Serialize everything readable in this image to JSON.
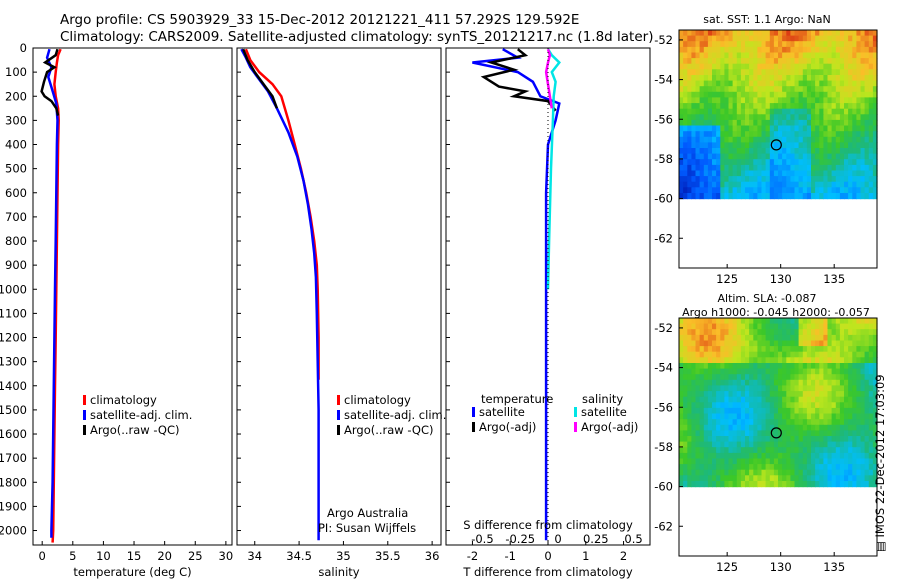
{
  "header": {
    "line1": "Argo profile: CS 5903929_33 15-Dec-2012 20121221_411 57.292S 129.592E",
    "line2": "Climatology: CARS2009. Satellite-adjusted climatology: synTS_20121217.nc (1.8d later)"
  },
  "colors": {
    "climatology": "#ff0000",
    "satellite": "#0000ff",
    "argo": "#000000",
    "sal_satellite": "#00e5e5",
    "sal_argo": "#ff00ff"
  },
  "chart_data": [
    {
      "id": "temperature",
      "type": "line",
      "xlabel": "temperature (deg C)",
      "ylabel": "",
      "xlim": [
        -1.5,
        31
      ],
      "ylim": [
        2060,
        0
      ],
      "xticks": [
        0,
        5,
        10,
        15,
        20,
        25,
        30
      ],
      "yticks": [
        0,
        100,
        200,
        300,
        400,
        500,
        600,
        700,
        800,
        900,
        1000,
        1100,
        1200,
        1300,
        1400,
        1500,
        1600,
        1700,
        1800,
        1900,
        2000
      ],
      "legend": [
        "climatology",
        "satellite-adj. clim.",
        "Argo(..raw -QC)"
      ],
      "series": [
        {
          "name": "climatology",
          "color": "#ff0000",
          "points": [
            [
              3.0,
              5
            ],
            [
              2.6,
              30
            ],
            [
              2.4,
              60
            ],
            [
              2.2,
              100
            ],
            [
              2.0,
              150
            ],
            [
              2.2,
              200
            ],
            [
              2.6,
              250
            ],
            [
              2.7,
              300
            ],
            [
              2.6,
              400
            ],
            [
              2.5,
              600
            ],
            [
              2.4,
              800
            ],
            [
              2.3,
              1000
            ],
            [
              2.2,
              1200
            ],
            [
              2.1,
              1400
            ],
            [
              2.0,
              1600
            ],
            [
              1.9,
              1800
            ],
            [
              1.8,
              2000
            ],
            [
              1.7,
              2050
            ]
          ]
        },
        {
          "name": "satellite-adj. clim.",
          "color": "#0000ff",
          "points": [
            [
              1.2,
              5
            ],
            [
              0.8,
              40
            ],
            [
              1.5,
              80
            ],
            [
              1.0,
              120
            ],
            [
              1.6,
              170
            ],
            [
              2.3,
              230
            ],
            [
              2.5,
              300
            ],
            [
              2.4,
              400
            ],
            [
              2.3,
              600
            ],
            [
              2.2,
              800
            ],
            [
              2.1,
              1000
            ],
            [
              2.0,
              1200
            ],
            [
              1.9,
              1400
            ],
            [
              1.8,
              1600
            ],
            [
              1.7,
              1800
            ],
            [
              1.5,
              2000
            ],
            [
              1.5,
              2030
            ]
          ]
        },
        {
          "name": "Argo(..raw -QC)",
          "color": "#000000",
          "points": [
            [
              2.5,
              5
            ],
            [
              2.2,
              30
            ],
            [
              0.5,
              60
            ],
            [
              2.0,
              80
            ],
            [
              0.8,
              100
            ],
            [
              0.3,
              140
            ],
            [
              -0.1,
              180
            ],
            [
              0.4,
              200
            ],
            [
              1.5,
              220
            ],
            [
              2.3,
              250
            ],
            [
              2.6,
              280
            ]
          ]
        }
      ]
    },
    {
      "id": "salinity",
      "type": "line",
      "xlabel": "salinity",
      "ylabel": "",
      "xlim": [
        33.8,
        36.1
      ],
      "ylim": [
        2060,
        0
      ],
      "xticks": [
        34,
        34.5,
        35,
        35.5,
        36
      ],
      "legend": [
        "climatology",
        "satellite-adj. clim.",
        "Argo(..raw -QC)"
      ],
      "annotation": [
        "Argo Australia",
        "PI: Susan Wijffels"
      ],
      "series": [
        {
          "name": "climatology",
          "color": "#ff0000",
          "points": [
            [
              33.9,
              5
            ],
            [
              33.95,
              50
            ],
            [
              34.05,
              100
            ],
            [
              34.2,
              150
            ],
            [
              34.3,
              200
            ],
            [
              34.38,
              300
            ],
            [
              34.45,
              400
            ],
            [
              34.52,
              500
            ],
            [
              34.58,
              600
            ],
            [
              34.63,
              700
            ],
            [
              34.67,
              800
            ],
            [
              34.7,
              900
            ],
            [
              34.71,
              1000
            ],
            [
              34.72,
              1200
            ],
            [
              34.72,
              1375
            ]
          ]
        },
        {
          "name": "satellite-adj. clim.",
          "color": "#0000ff",
          "points": [
            [
              33.85,
              5
            ],
            [
              33.9,
              40
            ],
            [
              33.95,
              80
            ],
            [
              34.05,
              130
            ],
            [
              34.15,
              180
            ],
            [
              34.25,
              250
            ],
            [
              34.38,
              350
            ],
            [
              34.48,
              450
            ],
            [
              34.55,
              550
            ],
            [
              34.6,
              650
            ],
            [
              34.64,
              750
            ],
            [
              34.67,
              850
            ],
            [
              34.69,
              950
            ],
            [
              34.7,
              1100
            ],
            [
              34.71,
              1300
            ],
            [
              34.72,
              1500
            ],
            [
              34.72,
              1800
            ],
            [
              34.72,
              2000
            ],
            [
              34.72,
              2040
            ]
          ]
        },
        {
          "name": "Argo(..raw -QC)",
          "color": "#000000",
          "points": [
            [
              33.87,
              5
            ],
            [
              33.92,
              50
            ],
            [
              34.0,
              100
            ],
            [
              34.1,
              150
            ],
            [
              34.2,
              200
            ],
            [
              34.25,
              250
            ]
          ]
        }
      ]
    },
    {
      "id": "difference",
      "type": "line",
      "xlabel": "T difference from climatology",
      "x2label": "S difference from climatology",
      "xlim": [
        -2.7,
        2.7
      ],
      "ylim": [
        2060,
        0
      ],
      "xticks": [
        -2,
        -1,
        0,
        1,
        2
      ],
      "x2ticks": [
        "-0.5",
        "-0.25",
        "0",
        "0.25",
        "0.5"
      ],
      "legend_title_temperature": "temperature",
      "legend_title_salinity": "salinity",
      "legend": [
        "satellite",
        "Argo(-adj)",
        "satellite",
        "Argo(-adj)"
      ],
      "series": [
        {
          "name": "T satellite",
          "color": "#0000ff",
          "points": [
            [
              -1.2,
              5
            ],
            [
              -0.8,
              40
            ],
            [
              -2.0,
              60
            ],
            [
              -0.8,
              100
            ],
            [
              -0.4,
              140
            ],
            [
              -0.2,
              200
            ],
            [
              0.3,
              230
            ],
            [
              0.2,
              300
            ],
            [
              0.0,
              400
            ],
            [
              -0.05,
              600
            ],
            [
              -0.05,
              1000
            ],
            [
              -0.05,
              1500
            ],
            [
              -0.05,
              2000
            ],
            [
              -0.05,
              2040
            ]
          ]
        },
        {
          "name": "T Argo(-adj)",
          "color": "#000000",
          "points": [
            [
              -0.8,
              5
            ],
            [
              -0.6,
              30
            ],
            [
              -1.5,
              60
            ],
            [
              -0.9,
              90
            ],
            [
              -1.7,
              120
            ],
            [
              -1.3,
              160
            ],
            [
              -0.6,
              180
            ],
            [
              -0.9,
              200
            ],
            [
              0.0,
              220
            ],
            [
              0.2,
              260
            ]
          ]
        },
        {
          "name": "S satellite",
          "color": "#00e5e5",
          "points": [
            [
              0.0,
              5
            ],
            [
              0.1,
              30
            ],
            [
              0.3,
              60
            ],
            [
              0.1,
              100
            ],
            [
              0.2,
              140
            ],
            [
              0.15,
              200
            ],
            [
              0.13,
              300
            ],
            [
              0.08,
              500
            ],
            [
              0.03,
              800
            ],
            [
              0.0,
              1000
            ]
          ]
        },
        {
          "name": "S Argo(-adj)",
          "color": "#ff00ff",
          "points": [
            [
              0.0,
              5
            ],
            [
              0.05,
              30
            ],
            [
              0.0,
              60
            ],
            [
              -0.05,
              100
            ],
            [
              0.0,
              150
            ],
            [
              0.05,
              200
            ],
            [
              0.1,
              250
            ]
          ]
        }
      ]
    },
    {
      "id": "sst_map",
      "type": "heatmap",
      "title": "sat. SST: 1.1  Argo: NaN",
      "xticks": [
        125,
        130,
        135
      ],
      "yticks": [
        -52,
        -54,
        -56,
        -58,
        -60,
        -62
      ],
      "xlim": [
        120.5,
        139
      ],
      "ylim": [
        -63.5,
        -51.5
      ],
      "data_extent_lat": [
        -60,
        -51.5
      ],
      "marker": {
        "lon": 129.592,
        "lat": -57.292
      }
    },
    {
      "id": "sla_map",
      "type": "heatmap",
      "title_line1": "Altim. SLA: -0.087",
      "title_line2": "Argo h1000: -0.045 h2000: -0.057",
      "xticks": [
        125,
        130,
        135
      ],
      "yticks": [
        -52,
        -54,
        -56,
        -58,
        -60,
        -62
      ],
      "xlim": [
        120.5,
        139
      ],
      "ylim": [
        -63.5,
        -51.5
      ],
      "data_extent_lat": [
        -60,
        -51.5
      ],
      "marker": {
        "lon": 129.592,
        "lat": -57.292
      }
    }
  ],
  "stamp": "IMOS 22-Dec-2012 17:03:09"
}
